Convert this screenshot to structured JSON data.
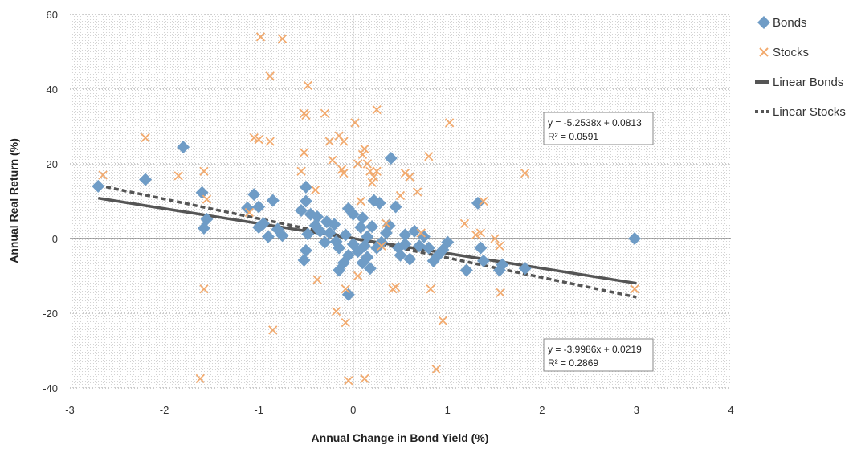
{
  "chart_data": {
    "type": "scatter",
    "xlabel": "Annual Change in Bond Yield (%)",
    "ylabel": "Annual Real Return (%)",
    "xlim": [
      -3,
      4
    ],
    "ylim": [
      -40,
      60
    ],
    "x_ticks": [
      "-3",
      "-2",
      "-1",
      "0",
      "1",
      "2",
      "3",
      "4"
    ],
    "y_ticks": [
      "-40",
      "-20",
      "0",
      "20",
      "40",
      "60"
    ],
    "grid": "horizontal-dotted",
    "legend_position": "right",
    "series": [
      {
        "name": "Bonds",
        "marker": "diamond",
        "color": "#6f9cc6",
        "points": [
          [
            -2.7,
            14
          ],
          [
            -2.2,
            15.8
          ],
          [
            -1.8,
            24.5
          ],
          [
            -1.6,
            12.3
          ],
          [
            -1.58,
            2.8
          ],
          [
            -1.55,
            5.2
          ],
          [
            -1.12,
            8.2
          ],
          [
            -1.05,
            11.8
          ],
          [
            -1.0,
            8.5
          ],
          [
            -1.0,
            3.0
          ],
          [
            -0.95,
            4.0
          ],
          [
            -0.9,
            0.5
          ],
          [
            -0.85,
            10.2
          ],
          [
            -0.8,
            2.5
          ],
          [
            -0.75,
            0.8
          ],
          [
            -0.55,
            7.5
          ],
          [
            -0.5,
            13.8
          ],
          [
            -0.5,
            10.0
          ],
          [
            -0.5,
            -3.2
          ],
          [
            -0.52,
            -5.8
          ],
          [
            -0.48,
            1.2
          ],
          [
            -0.45,
            6.5
          ],
          [
            -0.4,
            3.5
          ],
          [
            -0.38,
            5.8
          ],
          [
            -0.35,
            2.0
          ],
          [
            -0.3,
            -1.0
          ],
          [
            -0.28,
            4.5
          ],
          [
            -0.25,
            1.5
          ],
          [
            -0.2,
            3.8
          ],
          [
            -0.18,
            -0.8
          ],
          [
            -0.15,
            -2.5
          ],
          [
            -0.15,
            -8.5
          ],
          [
            -0.1,
            -6.5
          ],
          [
            -0.08,
            1.0
          ],
          [
            -0.05,
            8.0
          ],
          [
            -0.05,
            -4.5
          ],
          [
            -0.05,
            -15.0
          ],
          [
            0.0,
            6.5
          ],
          [
            0.0,
            -1.5
          ],
          [
            0.05,
            -3.5
          ],
          [
            0.08,
            3.0
          ],
          [
            0.1,
            5.5
          ],
          [
            0.1,
            -6.5
          ],
          [
            0.12,
            -2.0
          ],
          [
            0.15,
            0.5
          ],
          [
            0.15,
            -5.0
          ],
          [
            0.18,
            -8.0
          ],
          [
            0.2,
            3.2
          ],
          [
            0.22,
            10.2
          ],
          [
            0.25,
            -2.5
          ],
          [
            0.28,
            9.5
          ],
          [
            0.3,
            -1.0
          ],
          [
            0.35,
            1.5
          ],
          [
            0.38,
            3.5
          ],
          [
            0.4,
            21.5
          ],
          [
            0.45,
            8.5
          ],
          [
            0.48,
            -2.5
          ],
          [
            0.5,
            -4.5
          ],
          [
            0.55,
            1.0
          ],
          [
            0.55,
            -1.5
          ],
          [
            0.6,
            -5.5
          ],
          [
            0.65,
            2.0
          ],
          [
            0.7,
            -2.0
          ],
          [
            0.75,
            0.5
          ],
          [
            0.8,
            -2.5
          ],
          [
            0.85,
            -6.0
          ],
          [
            0.9,
            -4.5
          ],
          [
            0.95,
            -3.0
          ],
          [
            1.0,
            -1.0
          ],
          [
            1.2,
            -8.5
          ],
          [
            1.32,
            9.5
          ],
          [
            1.35,
            -2.5
          ],
          [
            1.38,
            -6.0
          ],
          [
            1.55,
            -8.5
          ],
          [
            1.58,
            -7.0
          ],
          [
            1.82,
            -8.0
          ],
          [
            2.98,
            0.0
          ]
        ]
      },
      {
        "name": "Stocks",
        "marker": "x",
        "color": "#f2aa6e",
        "points": [
          [
            -2.65,
            17.0
          ],
          [
            -2.2,
            27.0
          ],
          [
            -1.85,
            16.8
          ],
          [
            -1.58,
            18.0
          ],
          [
            -1.55,
            10.5
          ],
          [
            -1.58,
            -13.5
          ],
          [
            -1.62,
            -37.5
          ],
          [
            -1.1,
            7.0
          ],
          [
            -1.05,
            27.0
          ],
          [
            -1.0,
            26.5
          ],
          [
            -0.98,
            54.0
          ],
          [
            -0.88,
            43.5
          ],
          [
            -0.88,
            26.0
          ],
          [
            -0.85,
            -24.5
          ],
          [
            -0.75,
            53.5
          ],
          [
            -0.52,
            33.5
          ],
          [
            -0.5,
            33.0
          ],
          [
            -0.52,
            23.0
          ],
          [
            -0.55,
            18.0
          ],
          [
            -0.48,
            41.0
          ],
          [
            -0.4,
            13.0
          ],
          [
            -0.38,
            -11.0
          ],
          [
            -0.3,
            33.5
          ],
          [
            -0.25,
            26.0
          ],
          [
            -0.22,
            21.0
          ],
          [
            -0.18,
            -19.5
          ],
          [
            -0.15,
            27.5
          ],
          [
            -0.12,
            18.5
          ],
          [
            -0.1,
            17.5
          ],
          [
            -0.1,
            26.0
          ],
          [
            -0.08,
            -13.5
          ],
          [
            -0.08,
            -22.5
          ],
          [
            -0.05,
            -38.0
          ],
          [
            0.02,
            31.0
          ],
          [
            0.05,
            20.0
          ],
          [
            0.05,
            -10.0
          ],
          [
            0.08,
            10.0
          ],
          [
            0.1,
            22.5
          ],
          [
            0.12,
            24.0
          ],
          [
            0.12,
            -37.5
          ],
          [
            0.15,
            20.0
          ],
          [
            0.18,
            18.0
          ],
          [
            0.2,
            15.0
          ],
          [
            0.22,
            16.5
          ],
          [
            0.25,
            18.0
          ],
          [
            0.25,
            34.5
          ],
          [
            0.3,
            -2.0
          ],
          [
            0.35,
            4.0
          ],
          [
            0.42,
            -13.5
          ],
          [
            0.45,
            -13.0
          ],
          [
            0.5,
            11.5
          ],
          [
            0.55,
            17.5
          ],
          [
            0.6,
            16.5
          ],
          [
            0.68,
            12.5
          ],
          [
            0.72,
            1.5
          ],
          [
            0.8,
            22.0
          ],
          [
            0.82,
            -13.5
          ],
          [
            0.88,
            -35.0
          ],
          [
            0.95,
            -22.0
          ],
          [
            1.02,
            31.0
          ],
          [
            1.18,
            4.0
          ],
          [
            1.3,
            1.0
          ],
          [
            1.35,
            1.5
          ],
          [
            1.38,
            10.0
          ],
          [
            1.5,
            0.0
          ],
          [
            1.55,
            -2.0
          ],
          [
            1.56,
            -14.5
          ],
          [
            1.82,
            17.5
          ],
          [
            2.98,
            -13.5
          ]
        ]
      }
    ],
    "trendlines": [
      {
        "name": "Linear Bonds",
        "series": "Bonds",
        "slope": -3.9986,
        "intercept": 0.0219,
        "x_range": [
          -2.7,
          3.0
        ],
        "style": "solid",
        "color": "#555555"
      },
      {
        "name": "Linear Stocks",
        "series": "Stocks",
        "slope": -5.2538,
        "intercept": 0.0813,
        "x_range": [
          -2.7,
          3.0
        ],
        "style": "dashed",
        "color": "#555555"
      }
    ],
    "annotations": [
      {
        "id": "stocks_eq",
        "line1": "y = -5.2538x + 0.0813",
        "line2": "R² = 0.0591"
      },
      {
        "id": "bonds_eq",
        "line1": "y = -3.9986x + 0.0219",
        "line2": "R² = 0.2869"
      }
    ]
  }
}
